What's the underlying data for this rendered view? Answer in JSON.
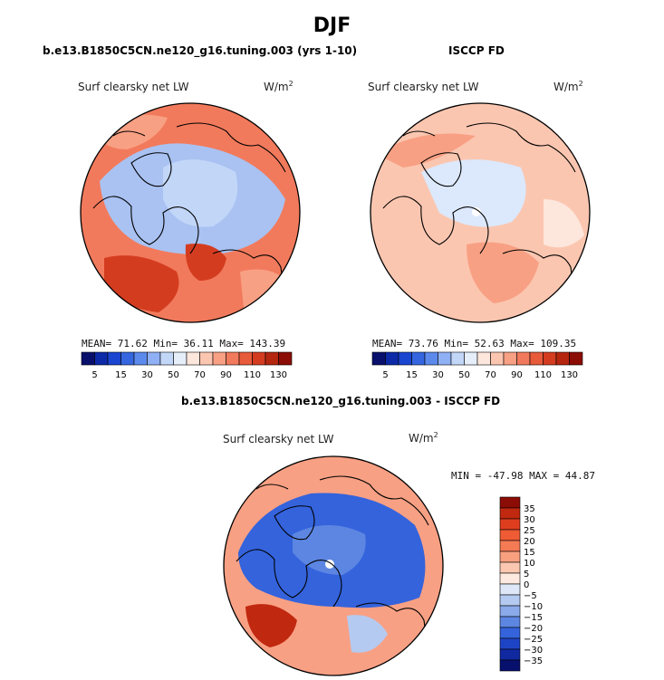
{
  "figure": {
    "season": "DJF"
  },
  "panels": [
    {
      "title": "b.e13.B1850C5CN.ne120_g16.tuning.003 (yrs 1-10)",
      "label": "Surf clearsky net LW",
      "units_base": "W/m",
      "units_exp": "2",
      "stats": {
        "text": "MEAN=   71.62   Min=   36.11   Max= 143.39"
      }
    },
    {
      "title": "ISCCP FD",
      "label": "Surf clearsky net LW",
      "units_base": "W/m",
      "units_exp": "2",
      "stats": {
        "text": "MEAN=   73.76   Min=   52.63   Max= 109.35"
      }
    },
    {
      "title": "b.e13.B1850C5CN.ne120_g16.tuning.003 - ISCCP FD",
      "label": "Surf clearsky net LW",
      "units_base": "W/m",
      "units_exp": "2",
      "stats": {
        "text": "MIN = -47.98  MAX =  44.87"
      }
    }
  ],
  "colorbar_abs": {
    "labels": [
      "5",
      "15",
      "30",
      "50",
      "70",
      "90",
      "110",
      "130"
    ],
    "colors": [
      "#08106b",
      "#0c2aa8",
      "#1a45d0",
      "#3566e0",
      "#5c8aec",
      "#8fb0f4",
      "#c2d6f8",
      "#e6eefa",
      "#fde6dc",
      "#fbc6b0",
      "#f8a084",
      "#f27a5c",
      "#e75a3a",
      "#d43c20",
      "#b5260f",
      "#8c0d06"
    ]
  },
  "colorbar_diff": {
    "labels": [
      "35",
      "30",
      "25",
      "20",
      "15",
      "10",
      "5",
      "0",
      "−5",
      "−10",
      "−15",
      "−20",
      "−25",
      "−30",
      "−35"
    ],
    "colors": [
      "#8c0d06",
      "#c0280f",
      "#de3d1e",
      "#ee5b35",
      "#f57b55",
      "#f9a07f",
      "#fbc7b0",
      "#fde9df",
      "#dde7f7",
      "#b5caf1",
      "#8aaaea",
      "#5c86e2",
      "#3463dc",
      "#1e44c6",
      "#1028a0",
      "#07106d"
    ]
  },
  "maps": {
    "colors": {
      "model_base": "#f27a5c",
      "model_warm": "#f8a084",
      "model_hot": "#d43c20",
      "model_cool": "#a9c2f2",
      "model_pale": "#c2d6f8",
      "obs_base": "#fbc6b0",
      "obs_warm": "#f8a084",
      "obs_cool": "#dce8fb",
      "obs_pale": "#fde6dc",
      "diff_base": "#f8a084",
      "diff_cool": "#3463dc",
      "diff_blue": "#5c86e2",
      "diff_pale": "#b5caf1",
      "diff_hot": "#c0280f"
    }
  }
}
